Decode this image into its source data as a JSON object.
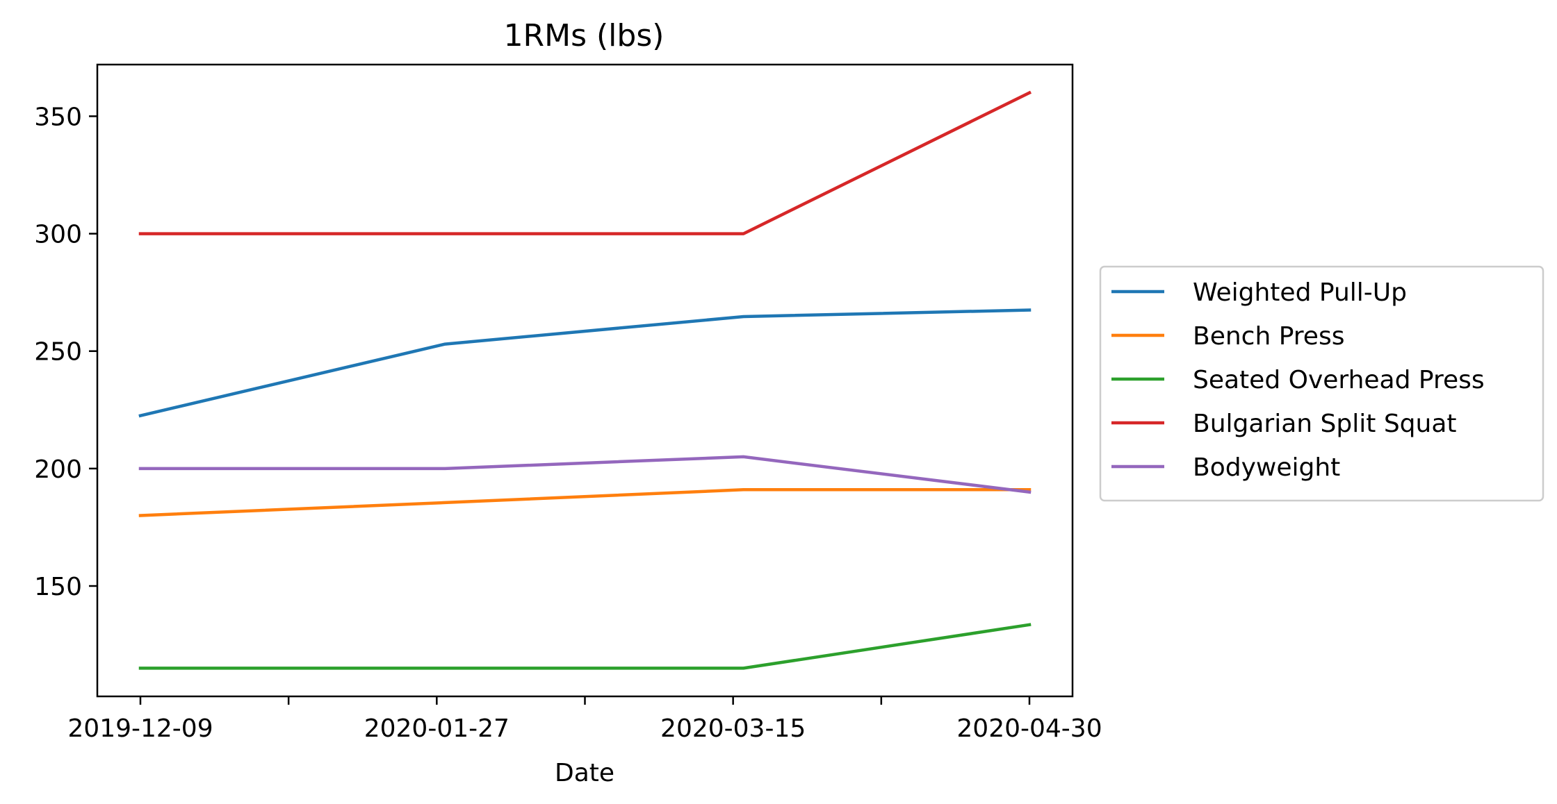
{
  "chart_data": {
    "type": "line",
    "title": "1RMs (lbs)",
    "xlabel": "Date",
    "ylabel": "",
    "x": [
      "2019-12-09",
      "2020-01-27",
      "2020-03-15",
      "2020-04-30"
    ],
    "x_tick_labels": [
      "2019-12-09",
      "2020-01-27",
      "2020-03-15",
      "2020-04-30"
    ],
    "ylim": [
      103,
      372
    ],
    "y_ticks": [
      150,
      200,
      250,
      300,
      350
    ],
    "grid": false,
    "legend_position": "center-right-outside",
    "series": [
      {
        "name": "Weighted Pull-Up",
        "color": "#1f77b4",
        "values": [
          222.5,
          253,
          264.7,
          267.5
        ]
      },
      {
        "name": "Bench Press",
        "color": "#ff7f0e",
        "values": [
          180,
          185.5,
          191,
          191
        ]
      },
      {
        "name": "Seated Overhead Press",
        "color": "#2ca02c",
        "values": [
          115,
          115,
          115,
          133.5
        ]
      },
      {
        "name": "Bulgarian Split Squat",
        "color": "#d62728",
        "values": [
          300,
          300,
          300,
          360
        ]
      },
      {
        "name": "Bodyweight",
        "color": "#9467bd",
        "values": [
          200,
          200,
          205,
          190
        ]
      }
    ]
  }
}
